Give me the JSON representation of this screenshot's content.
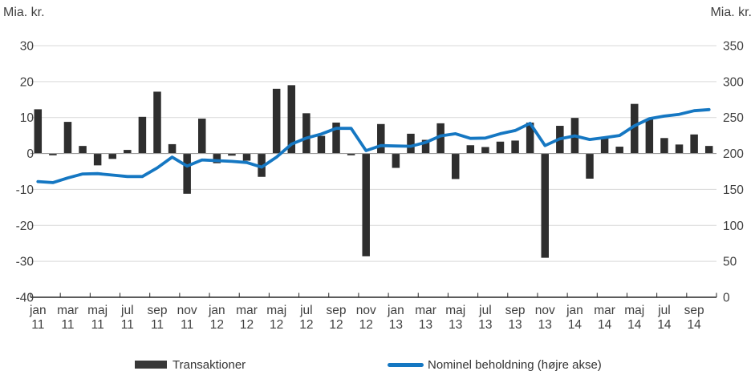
{
  "chart_data": {
    "type": "combo-bar-line",
    "title": "",
    "grid": true,
    "legend_position": "bottom",
    "left_axis": {
      "label": "Mia. kr.",
      "min": -40,
      "max": 30,
      "ticks": [
        30,
        20,
        10,
        0,
        -10,
        -20,
        -30,
        -40
      ]
    },
    "right_axis": {
      "label": "Mia. kr.",
      "min": 0,
      "max": 350,
      "ticks": [
        350,
        300,
        250,
        200,
        150,
        100,
        50,
        0
      ]
    },
    "x_label_every": 2,
    "categories": [
      "jan 11",
      "feb 11",
      "mar 11",
      "apr 11",
      "maj 11",
      "jun 11",
      "jul 11",
      "aug 11",
      "sep 11",
      "okt 11",
      "nov 11",
      "dec 11",
      "jan 12",
      "feb 12",
      "mar 12",
      "apr 12",
      "maj 12",
      "jun 12",
      "jul 12",
      "aug 12",
      "sep 12",
      "okt 12",
      "nov 12",
      "dec 12",
      "jan 13",
      "feb 13",
      "mar 13",
      "apr 13",
      "maj 13",
      "jun 13",
      "jul 13",
      "aug 13",
      "sep 13",
      "okt 13",
      "nov 13",
      "dec 13",
      "jan 14",
      "feb 14",
      "mar 14",
      "apr 14",
      "maj 14",
      "jun 14",
      "jul 14",
      "aug 14",
      "sep 14",
      "okt 14"
    ],
    "series": [
      {
        "name": "Transaktioner",
        "type": "bar",
        "axis": "left",
        "color": "#2e2e2e",
        "values": [
          12.3,
          -0.5,
          8.8,
          2.1,
          -3.3,
          -1.5,
          1.0,
          10.2,
          17.2,
          2.6,
          -11.2,
          9.7,
          -2.7,
          -0.6,
          -2.0,
          -6.5,
          18.0,
          19.0,
          11.2,
          4.9,
          8.6,
          -0.5,
          -28.6,
          8.2,
          -4.0,
          5.5,
          3.8,
          8.4,
          -7.1,
          2.3,
          1.8,
          3.3,
          3.6,
          8.6,
          -29.0,
          7.7,
          9.9,
          -7.0,
          4.7,
          1.9,
          13.8,
          9.6,
          4.3,
          2.5,
          5.3,
          2.1
        ]
      },
      {
        "name": "Nominel beholdning (højre akse)",
        "type": "line",
        "axis": "right",
        "color": "#1577c2",
        "values": [
          161,
          159.5,
          166,
          171.5,
          172,
          170,
          168,
          168,
          180,
          195,
          182.5,
          191,
          190,
          189,
          187.5,
          181,
          195,
          213,
          221.5,
          227,
          235,
          235,
          204,
          211,
          210.5,
          210,
          215.5,
          224.5,
          227.5,
          221,
          221.5,
          227.5,
          232,
          242,
          211,
          220.5,
          224.5,
          219.5,
          222,
          225,
          238.5,
          248.5,
          252,
          254.5,
          259.5,
          261
        ]
      }
    ],
    "colors": {
      "grid": "#d9d9d9",
      "zero_line": "#9b9b9b",
      "axis_line": "#262626",
      "tick_text": "#404040"
    }
  }
}
